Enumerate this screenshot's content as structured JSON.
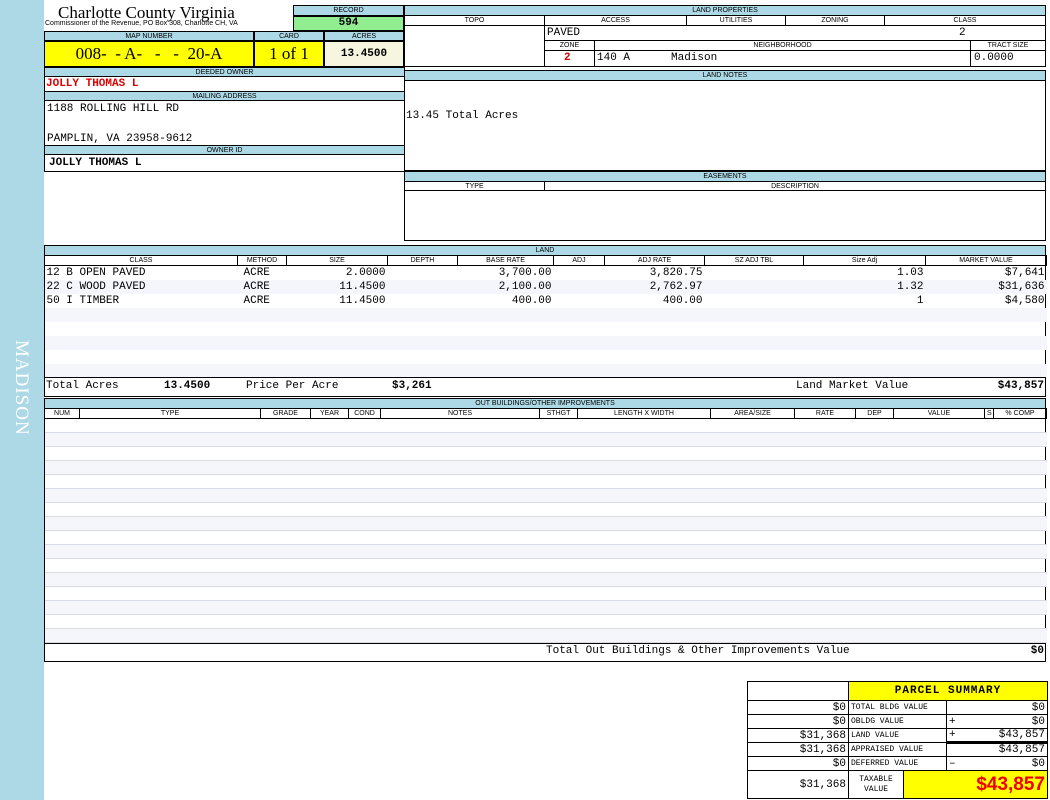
{
  "sidebar": {
    "label": "MADISON"
  },
  "header": {
    "title": "Charlotte County Virginia",
    "subtitle": "Commissioner of the Revenue, PO Box 308, Charlotte CH, VA",
    "record_label": "RECORD",
    "record": "594",
    "map_label": "MAP NUMBER",
    "map_number": "008-  - A-   -   -  20-A",
    "card_label": "CARD",
    "card": "1 of 1",
    "acres_label": "ACRES",
    "acres": "13.4500"
  },
  "owner": {
    "deeded_label": "DEEDED OWNER",
    "deeded": "JOLLY THOMAS L",
    "mailing_label": "MAILING ADDRESS",
    "address1": "1188 ROLLING HILL RD",
    "address2": "PAMPLIN, VA 23958-9612",
    "owner_id_label": "OWNER ID",
    "owner_id": "JOLLY THOMAS L"
  },
  "land_properties": {
    "title": "LAND PROPERTIES",
    "topo_label": "TOPO",
    "access_label": "ACCESS",
    "utilities_label": "UTILITIES",
    "zoning_label": "ZONING",
    "class_label": "CLASS",
    "access": "PAVED",
    "class": "2",
    "zone_label": "ZONE",
    "neighborhood_label": "NEIGHBORHOOD",
    "tract_label": "TRACT SIZE",
    "zone": "2",
    "neighborhood_code": "140 A",
    "neighborhood": "Madison",
    "tract_size": "0.0000"
  },
  "land_notes": {
    "title": "LAND NOTES",
    "text": "13.45 Total Acres"
  },
  "easements": {
    "title": "EASEMENTS",
    "type_label": "TYPE",
    "description_label": "DESCRIPTION"
  },
  "land": {
    "title": "LAND",
    "columns": [
      "CLASS",
      "METHOD",
      "SIZE",
      "DEPTH",
      "BASE RATE",
      "ADJ",
      "ADJ RATE",
      "SZ ADJ TBL",
      "Size Adj",
      "MARKET VALUE"
    ],
    "rows": [
      [
        "12 B OPEN PAVED",
        "ACRE",
        "2.0000",
        "",
        "3,700.00",
        "",
        "3,820.75",
        "",
        "1.03",
        "$7,641"
      ],
      [
        "22 C WOOD PAVED",
        "ACRE",
        "11.4500",
        "",
        "2,100.00",
        "",
        "2,762.97",
        "",
        "1.32",
        "$31,636"
      ],
      [
        "50 I TIMBER",
        "ACRE",
        "11.4500",
        "",
        "400.00",
        "",
        "400.00",
        "",
        "1",
        "$4,580"
      ]
    ],
    "total_acres_label": "Total Acres",
    "total_acres": "13.4500",
    "price_per_acre_label": "Price Per Acre",
    "price_per_acre": "$3,261",
    "market_value_label": "Land Market Value",
    "market_value": "$43,857"
  },
  "outbuildings": {
    "title": "OUT BUILDINGS/OTHER IMPROVEMENTS",
    "columns": [
      "NUM",
      "TYPE",
      "GRADE",
      "YEAR",
      "COND",
      "NOTES",
      "STHGT",
      "LENGTH X WIDTH",
      "AREA/SIZE",
      "RATE",
      "DEP",
      "VALUE",
      "S",
      "% COMP"
    ],
    "total_label": "Total Out Buildings & Other Improvements Value",
    "total": "$0"
  },
  "summary": {
    "title": "PARCEL SUMMARY",
    "rows": [
      {
        "prior": "$0",
        "label": "TOTAL BLDG VALUE",
        "op": "",
        "value": "$0"
      },
      {
        "prior": "$0",
        "label": "OBLDG VALUE",
        "op": "+",
        "value": "$0"
      },
      {
        "prior": "$31,368",
        "label": "LAND VALUE",
        "op": "+",
        "value": "$43,857"
      },
      {
        "prior": "$31,368",
        "label": "APPRAISED VALUE",
        "op": "",
        "value": "$43,857"
      },
      {
        "prior": "$0",
        "label": "DEFERRED VALUE",
        "op": "–",
        "value": "$0"
      }
    ],
    "taxable_prior": "$31,368",
    "taxable_label": "TAXABLE VALUE",
    "taxable": "$43,857"
  }
}
